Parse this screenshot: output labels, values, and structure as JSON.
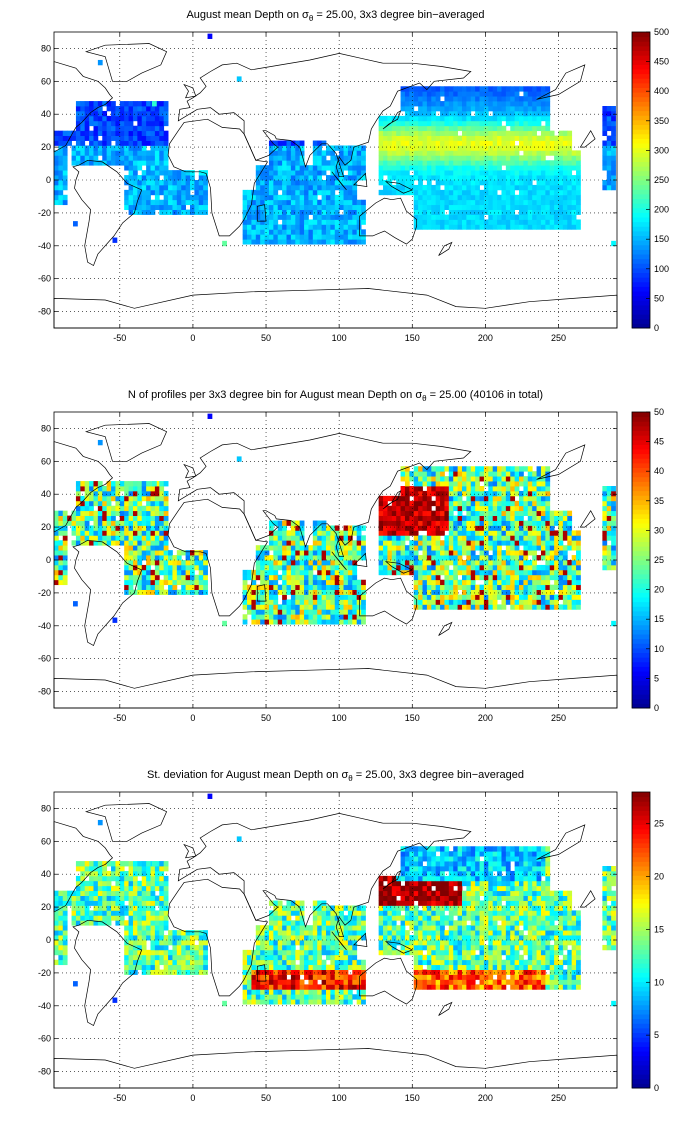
{
  "colors": {
    "jet": [
      "#00008f",
      "#0000ff",
      "#0080ff",
      "#00ffff",
      "#80ff80",
      "#ffff00",
      "#ff8000",
      "#ff0000",
      "#800000"
    ],
    "land_outline": "#000000",
    "grid": "#000000"
  },
  "chart_data": [
    {
      "type": "heatmap",
      "title_pre": "August mean Depth on ",
      "title_sigma": "σ",
      "title_sub": "θ",
      "title_post": " = 25.00, 3x3 degree bin−averaged",
      "xlim": [
        -95,
        290
      ],
      "ylim": [
        -90,
        90
      ],
      "xticks": [
        -50,
        0,
        50,
        100,
        150,
        200,
        250
      ],
      "yticks": [
        -80,
        -60,
        -40,
        -20,
        0,
        20,
        40,
        60,
        80
      ],
      "colorbar": {
        "min": 0,
        "max": 500,
        "ticks": [
          0,
          50,
          100,
          150,
          200,
          250,
          300,
          350,
          400,
          450,
          500
        ]
      },
      "grid": true,
      "bin_size_deg": 3,
      "field": "mean_depth"
    },
    {
      "type": "heatmap",
      "title_pre": "N of profiles per 3x3 degree bin for August mean Depth on ",
      "title_sigma": "σ",
      "title_sub": "θ",
      "title_post": " = 25.00 (40106 in total)",
      "xlim": [
        -95,
        290
      ],
      "ylim": [
        -90,
        90
      ],
      "xticks": [
        -50,
        0,
        50,
        100,
        150,
        200,
        250
      ],
      "yticks": [
        -80,
        -60,
        -40,
        -20,
        0,
        20,
        40,
        60,
        80
      ],
      "colorbar": {
        "min": 0,
        "max": 50,
        "ticks": [
          0,
          5,
          10,
          15,
          20,
          25,
          30,
          35,
          40,
          45,
          50
        ]
      },
      "grid": true,
      "bin_size_deg": 3,
      "total_profiles": 40106,
      "field": "profile_count"
    },
    {
      "type": "heatmap",
      "title_pre": "St. deviation for August mean Depth on ",
      "title_sigma": "σ",
      "title_sub": "θ",
      "title_post": " = 25.00, 3x3 degree bin−averaged",
      "xlim": [
        -95,
        290
      ],
      "ylim": [
        -90,
        90
      ],
      "xticks": [
        -50,
        0,
        50,
        100,
        150,
        200,
        250
      ],
      "yticks": [
        -80,
        -60,
        -40,
        -20,
        0,
        20,
        40,
        60,
        80
      ],
      "colorbar": {
        "min": 0,
        "max": 28,
        "ticks": [
          0,
          5,
          10,
          15,
          20,
          25
        ]
      },
      "grid": true,
      "bin_size_deg": 3,
      "field": "std_depth"
    }
  ]
}
